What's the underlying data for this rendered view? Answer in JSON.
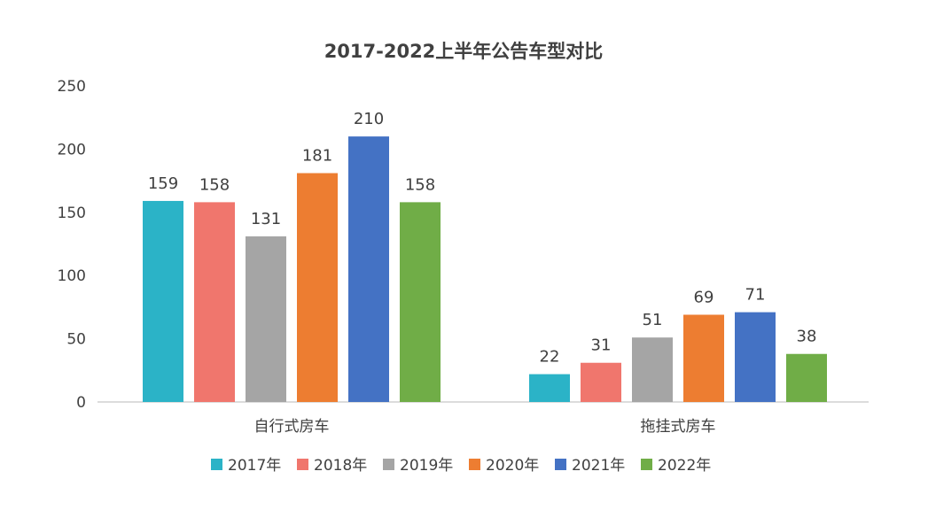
{
  "chart_data": {
    "type": "bar",
    "title": "2017-2022上半年公告车型对比",
    "categories": [
      "自行式房车",
      "拖挂式房车"
    ],
    "series": [
      {
        "name": "2017年",
        "color": "#2bb3c7",
        "values": [
          159,
          22
        ]
      },
      {
        "name": "2018年",
        "color": "#f0766d",
        "values": [
          158,
          31
        ]
      },
      {
        "name": "2019年",
        "color": "#a5a5a5",
        "values": [
          131,
          51
        ]
      },
      {
        "name": "2020年",
        "color": "#ed7d31",
        "values": [
          181,
          69
        ]
      },
      {
        "name": "2021年",
        "color": "#4472c4",
        "values": [
          210,
          71
        ]
      },
      {
        "name": "2022年",
        "color": "#70ad47",
        "values": [
          158,
          38
        ]
      }
    ],
    "ylim": [
      0,
      250
    ],
    "yticks": [
      0,
      50,
      100,
      150,
      200,
      250
    ],
    "grid": false,
    "legend": "bottom"
  }
}
